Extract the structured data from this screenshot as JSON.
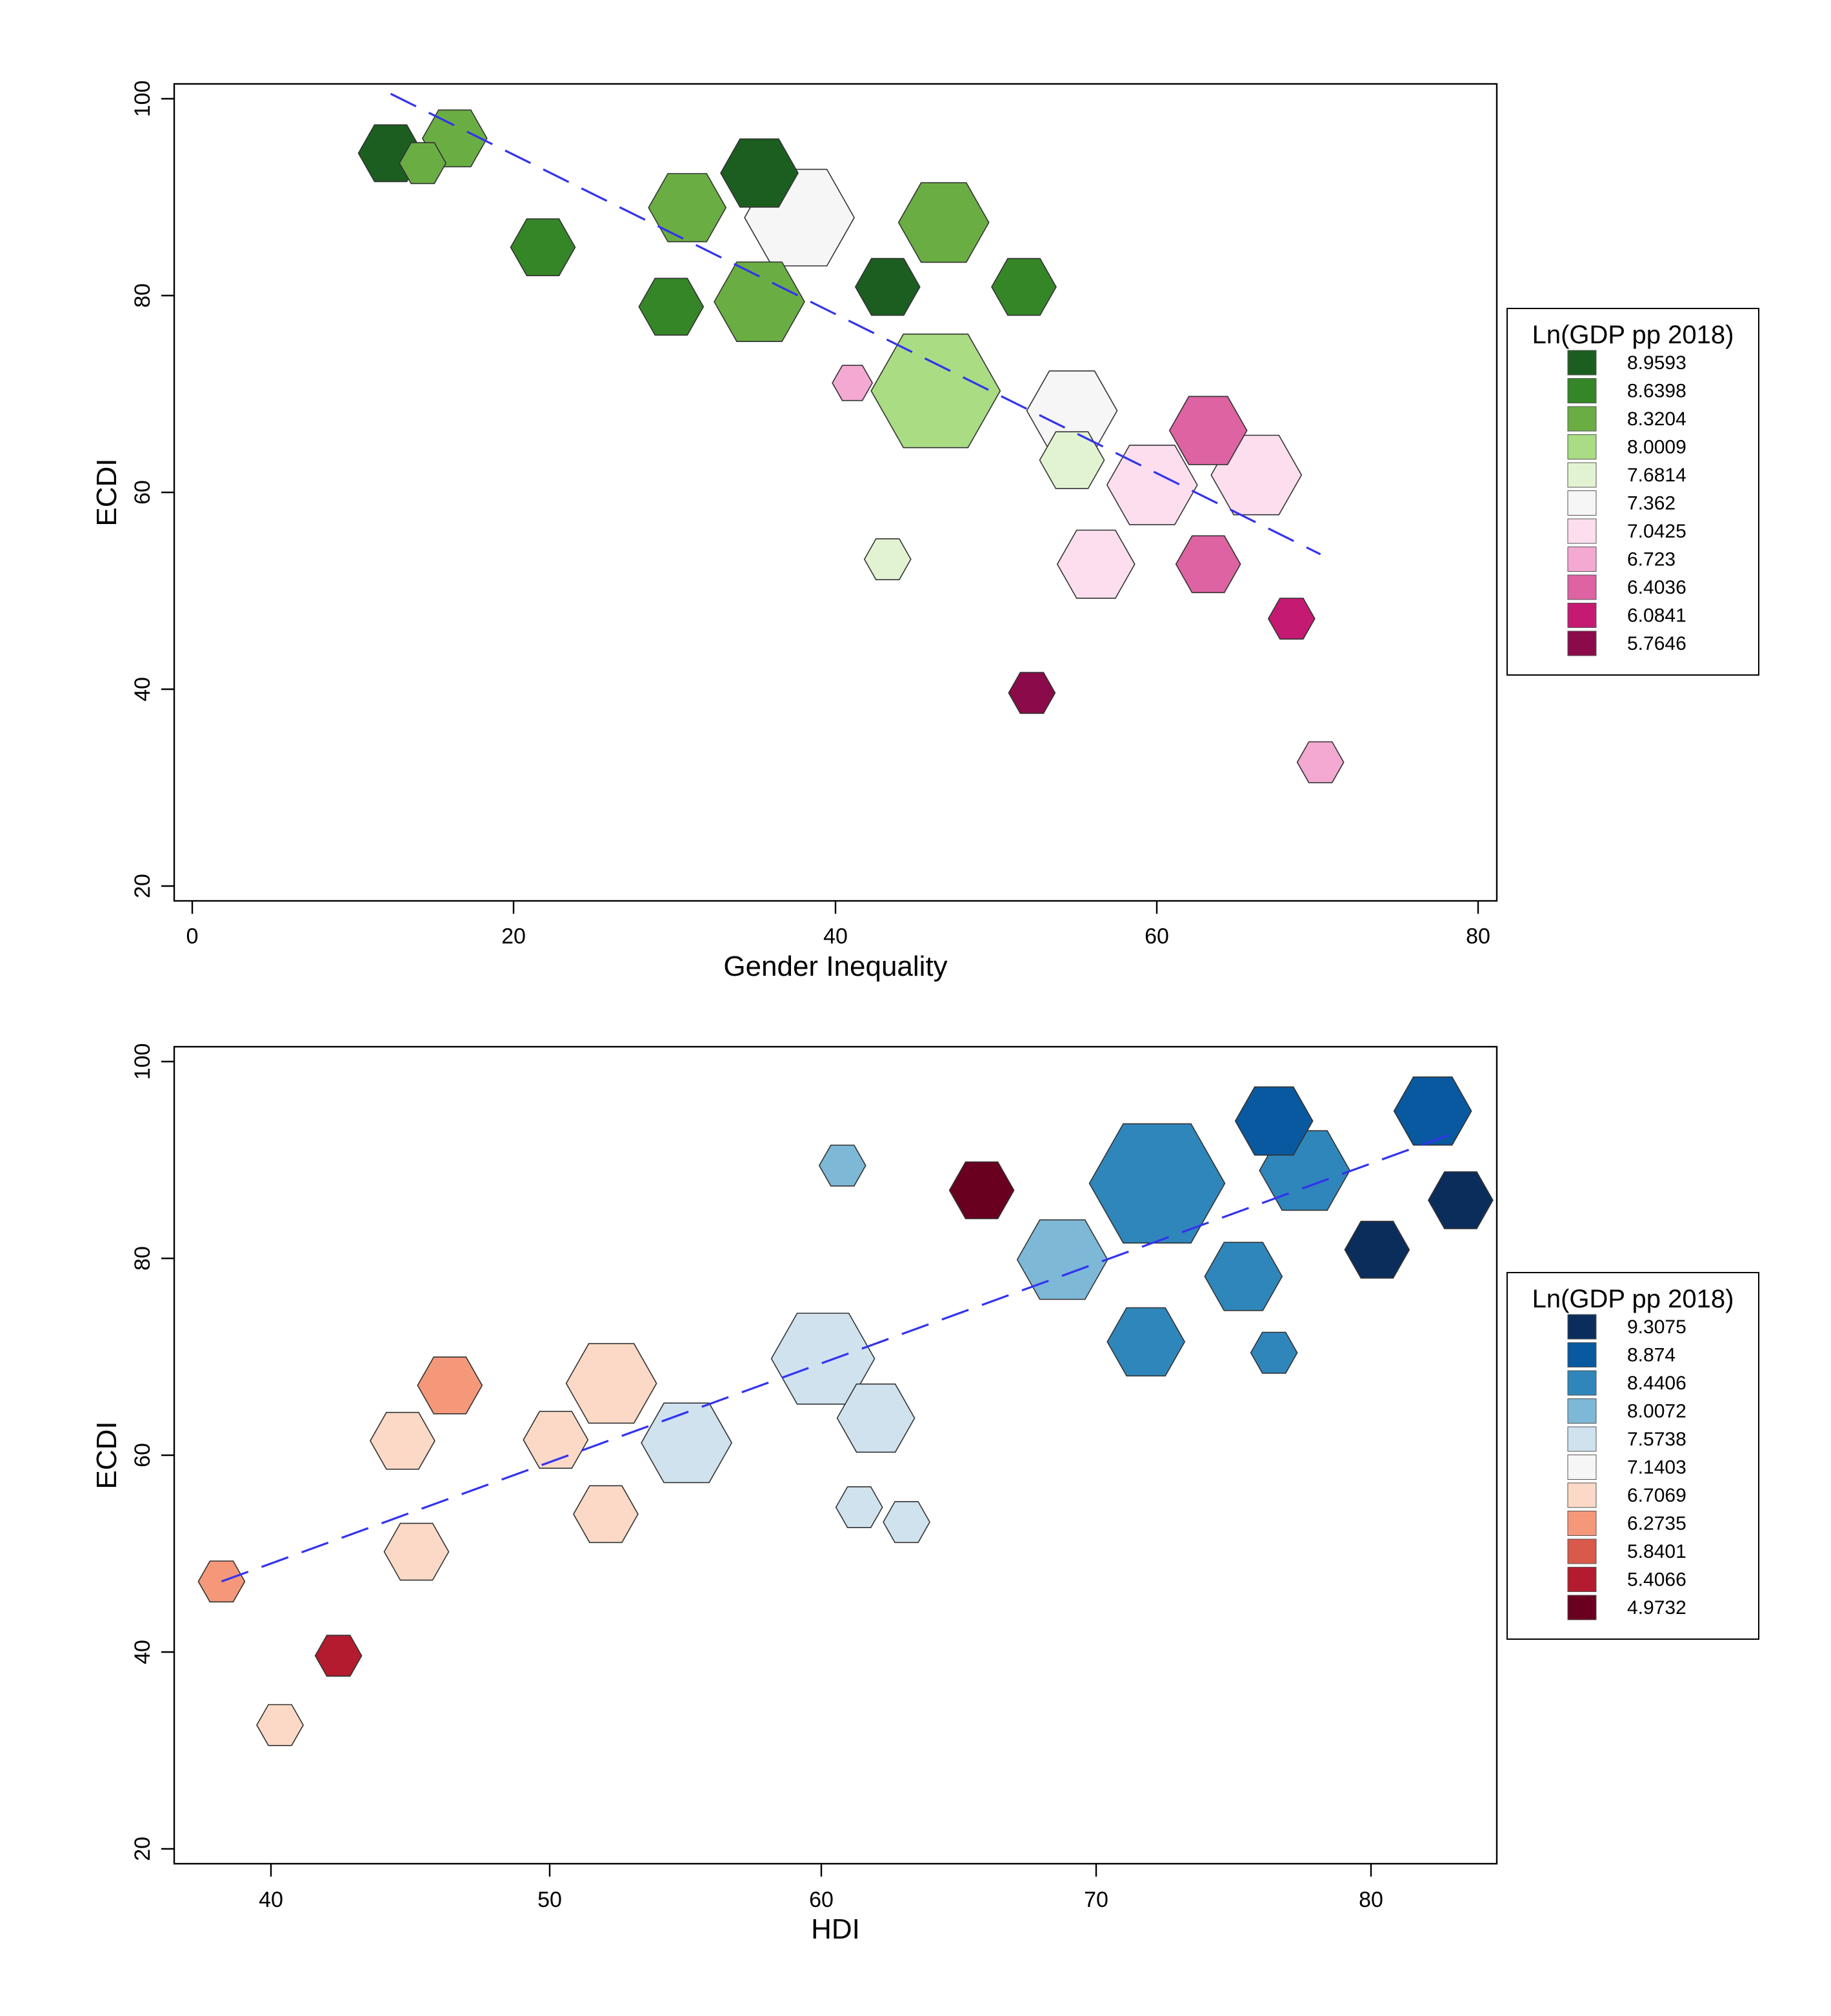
{
  "chart_data": [
    {
      "type": "scatter",
      "marker": "hexagon",
      "xlabel": "Gender Inequality",
      "ylabel": "ECDI",
      "xlim": [
        -1.5,
        81
      ],
      "ylim": [
        18.5,
        101
      ],
      "xticks": [
        0,
        20,
        40,
        60,
        80
      ],
      "yticks": [
        20,
        40,
        60,
        80,
        100
      ],
      "fit_line": {
        "x1": 12,
        "y1": 100,
        "x2": 70,
        "y2": 53.5
      },
      "legend": {
        "title": "Ln(GDP pp 2018)",
        "position": "right",
        "entries": [
          {
            "label": "8.9593",
            "color": "#1b5e20"
          },
          {
            "label": "8.6398",
            "color": "#358627"
          },
          {
            "label": "8.3204",
            "color": "#6aae43"
          },
          {
            "label": "8.0009",
            "color": "#a9dc83"
          },
          {
            "label": "7.6814",
            "color": "#e2f3d2"
          },
          {
            "label": "7.362",
            "color": "#f6f6f6"
          },
          {
            "label": "7.0425",
            "color": "#fcdeee"
          },
          {
            "label": "6.723",
            "color": "#f4a9d2"
          },
          {
            "label": "6.4036",
            "color": "#dd63a2"
          },
          {
            "label": "6.0841",
            "color": "#c51a72"
          },
          {
            "label": "5.7646",
            "color": "#8b0a49"
          }
        ]
      },
      "points": [
        {
          "x": 12,
          "y": 94,
          "s": 1.0,
          "c": 0
        },
        {
          "x": 14,
          "y": 93,
          "s": 0.72,
          "c": 2
        },
        {
          "x": 16,
          "y": 95.5,
          "s": 1.0,
          "c": 2
        },
        {
          "x": 21.5,
          "y": 84.5,
          "s": 1.0,
          "c": 1
        },
        {
          "x": 30.5,
          "y": 88.5,
          "s": 1.2,
          "c": 2
        },
        {
          "x": 29.5,
          "y": 78.5,
          "s": 1.0,
          "c": 1
        },
        {
          "x": 37.5,
          "y": 87.5,
          "s": 1.7,
          "c": 5
        },
        {
          "x": 35,
          "y": 92,
          "s": 1.2,
          "c": 0
        },
        {
          "x": 35,
          "y": 79,
          "s": 1.4,
          "c": 2
        },
        {
          "x": 43,
          "y": 80.5,
          "s": 1.0,
          "c": 0
        },
        {
          "x": 46.5,
          "y": 87,
          "s": 1.4,
          "c": 2
        },
        {
          "x": 51.5,
          "y": 80.5,
          "s": 1.0,
          "c": 1
        },
        {
          "x": 40.8,
          "y": 70.8,
          "s": 0.62,
          "c": 7
        },
        {
          "x": 46,
          "y": 70,
          "s": 2.0,
          "c": 3
        },
        {
          "x": 54.5,
          "y": 68,
          "s": 1.4,
          "c": 5
        },
        {
          "x": 54.5,
          "y": 63,
          "s": 1.0,
          "c": 4
        },
        {
          "x": 59.5,
          "y": 60.5,
          "s": 1.4,
          "c": 6
        },
        {
          "x": 63,
          "y": 66,
          "s": 1.2,
          "c": 8
        },
        {
          "x": 66,
          "y": 61.5,
          "s": 1.4,
          "c": 6
        },
        {
          "x": 43,
          "y": 53,
          "s": 0.72,
          "c": 4
        },
        {
          "x": 56,
          "y": 52.5,
          "s": 1.2,
          "c": 6
        },
        {
          "x": 63,
          "y": 52.5,
          "s": 1.0,
          "c": 8
        },
        {
          "x": 68.2,
          "y": 47,
          "s": 0.72,
          "c": 9
        },
        {
          "x": 52,
          "y": 39.5,
          "s": 0.72,
          "c": 10
        },
        {
          "x": 70,
          "y": 32.5,
          "s": 0.72,
          "c": 7
        }
      ]
    },
    {
      "type": "scatter",
      "marker": "hexagon",
      "xlabel": "HDI",
      "ylabel": "ECDI",
      "xlim": [
        36.3,
        83.8
      ],
      "ylim": [
        18.5,
        101
      ],
      "xticks": [
        40,
        50,
        60,
        70,
        80
      ],
      "yticks": [
        20,
        40,
        60,
        80,
        100
      ],
      "fit_line": {
        "x1": 38,
        "y1": 47,
        "x2": 82.5,
        "y2": 92.5
      },
      "legend": {
        "title": "Ln(GDP pp 2018)",
        "position": "right",
        "entries": [
          {
            "label": "9.3075",
            "color": "#0b2d5c"
          },
          {
            "label": "8.874",
            "color": "#08599f"
          },
          {
            "label": "8.4406",
            "color": "#2f86bb"
          },
          {
            "label": "8.0072",
            "color": "#7db8d7"
          },
          {
            "label": "7.5738",
            "color": "#cfe2ee"
          },
          {
            "label": "7.1403",
            "color": "#f6f6f6"
          },
          {
            "label": "6.7069",
            "color": "#fbd9c6"
          },
          {
            "label": "6.2735",
            "color": "#f5987a"
          },
          {
            "label": "5.8401",
            "color": "#d9594a"
          },
          {
            "label": "5.4066",
            "color": "#b41b2e"
          },
          {
            "label": "4.9732",
            "color": "#6a0020"
          }
        ]
      },
      "points": [
        {
          "x": 38,
          "y": 47,
          "s": 0.72,
          "c": 7
        },
        {
          "x": 42.2,
          "y": 39.5,
          "s": 0.72,
          "c": 9
        },
        {
          "x": 40.1,
          "y": 32.5,
          "s": 0.72,
          "c": 6
        },
        {
          "x": 44.5,
          "y": 61.2,
          "s": 1.0,
          "c": 6
        },
        {
          "x": 46.2,
          "y": 66.8,
          "s": 1.0,
          "c": 7
        },
        {
          "x": 45,
          "y": 50,
          "s": 1.0,
          "c": 6
        },
        {
          "x": 50,
          "y": 61.3,
          "s": 1.0,
          "c": 6
        },
        {
          "x": 51.8,
          "y": 53.8,
          "s": 1.0,
          "c": 6
        },
        {
          "x": 52,
          "y": 67,
          "s": 1.4,
          "c": 6
        },
        {
          "x": 54.7,
          "y": 61,
          "s": 1.4,
          "c": 4
        },
        {
          "x": 59.6,
          "y": 69.5,
          "s": 1.6,
          "c": 4
        },
        {
          "x": 61.5,
          "y": 63.5,
          "s": 1.2,
          "c": 4
        },
        {
          "x": 60.9,
          "y": 54.5,
          "s": 0.72,
          "c": 4
        },
        {
          "x": 62.6,
          "y": 53,
          "s": 0.72,
          "c": 4
        },
        {
          "x": 60.3,
          "y": 89,
          "s": 0.72,
          "c": 3
        },
        {
          "x": 65.3,
          "y": 86.5,
          "s": 1.0,
          "c": 10
        },
        {
          "x": 68.2,
          "y": 79.5,
          "s": 1.4,
          "c": 3
        },
        {
          "x": 71.6,
          "y": 87.2,
          "s": 2.1,
          "c": 2
        },
        {
          "x": 71.2,
          "y": 71.2,
          "s": 1.2,
          "c": 2
        },
        {
          "x": 74.7,
          "y": 77.8,
          "s": 1.2,
          "c": 2
        },
        {
          "x": 75.8,
          "y": 70.1,
          "s": 0.72,
          "c": 2
        },
        {
          "x": 76.9,
          "y": 88.5,
          "s": 1.4,
          "c": 2
        },
        {
          "x": 75.8,
          "y": 93.5,
          "s": 1.2,
          "c": 1
        },
        {
          "x": 81.5,
          "y": 94.5,
          "s": 1.2,
          "c": 1
        },
        {
          "x": 79.5,
          "y": 80.5,
          "s": 1.0,
          "c": 0
        },
        {
          "x": 82.5,
          "y": 85.5,
          "s": 1.0,
          "c": 0
        }
      ]
    }
  ]
}
